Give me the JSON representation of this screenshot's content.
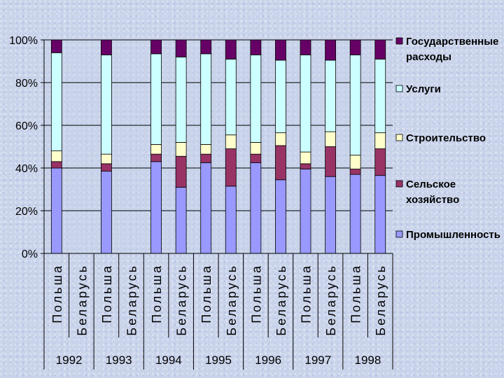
{
  "chart_data": {
    "type": "bar",
    "stacked": true,
    "percent": true,
    "yticks": [
      "0%",
      "20%",
      "40%",
      "60%",
      "80%",
      "100%"
    ],
    "ylim": [
      0,
      100
    ],
    "categories": [
      {
        "country": "Польша",
        "year": "1992"
      },
      {
        "country": "Беларусь",
        "year": "1992"
      },
      {
        "country": "Польша",
        "year": "1993"
      },
      {
        "country": "Беларусь",
        "year": "1993"
      },
      {
        "country": "Польша",
        "year": "1994"
      },
      {
        "country": "Беларусь",
        "year": "1994"
      },
      {
        "country": "Польша",
        "year": "1995"
      },
      {
        "country": "Беларусь",
        "year": "1995"
      },
      {
        "country": "Польша",
        "year": "1996"
      },
      {
        "country": "Беларусь",
        "year": "1996"
      },
      {
        "country": "Польша",
        "year": "1997"
      },
      {
        "country": "Беларусь",
        "year": "1997"
      },
      {
        "country": "Польша",
        "year": "1998"
      },
      {
        "country": "Беларусь",
        "year": "1998"
      }
    ],
    "years": [
      "1992",
      "1993",
      "1994",
      "1995",
      "1996",
      "1997",
      "1998"
    ],
    "series": [
      {
        "name": "Промышленность",
        "color": "#9999ff",
        "values": [
          40,
          0,
          38.5,
          0,
          43,
          31,
          42.5,
          31.5,
          42.5,
          34.5,
          39.5,
          36,
          37,
          36.5
        ]
      },
      {
        "name": "Сельское хозяйство",
        "color": "#993366",
        "values": [
          3,
          0,
          3.5,
          0,
          3.5,
          14.5,
          4,
          17.5,
          4,
          16,
          2.5,
          14,
          2.5,
          12.5
        ]
      },
      {
        "name": "Строительство",
        "color": "#ffffcc",
        "values": [
          5,
          0,
          4.5,
          0,
          4.5,
          6.5,
          4.5,
          6.5,
          5.5,
          6,
          5.5,
          7,
          6.5,
          7.5
        ]
      },
      {
        "name": "Услуги",
        "color": "#ccffff",
        "values": [
          46,
          0,
          46.5,
          0,
          42.5,
          40,
          42.5,
          35.5,
          41,
          34,
          45.5,
          33.5,
          47,
          34.5
        ]
      },
      {
        "name": "Государственные расходы",
        "color": "#660066",
        "values": [
          6,
          0,
          7,
          0,
          6.5,
          8,
          6.5,
          9,
          7,
          9.5,
          7,
          9.5,
          7,
          9
        ]
      }
    ],
    "legend": [
      {
        "lines": [
          "Государственные",
          "расходы"
        ],
        "color": "#660066"
      },
      {
        "lines": [
          "Услуги"
        ],
        "color": "#ccffff"
      },
      {
        "lines": [
          "Строительство"
        ],
        "color": "#ffffcc"
      },
      {
        "lines": [
          "Сельское",
          "хозяйство"
        ],
        "color": "#993366"
      },
      {
        "lines": [
          "Промышленность"
        ],
        "color": "#9999ff"
      }
    ]
  }
}
